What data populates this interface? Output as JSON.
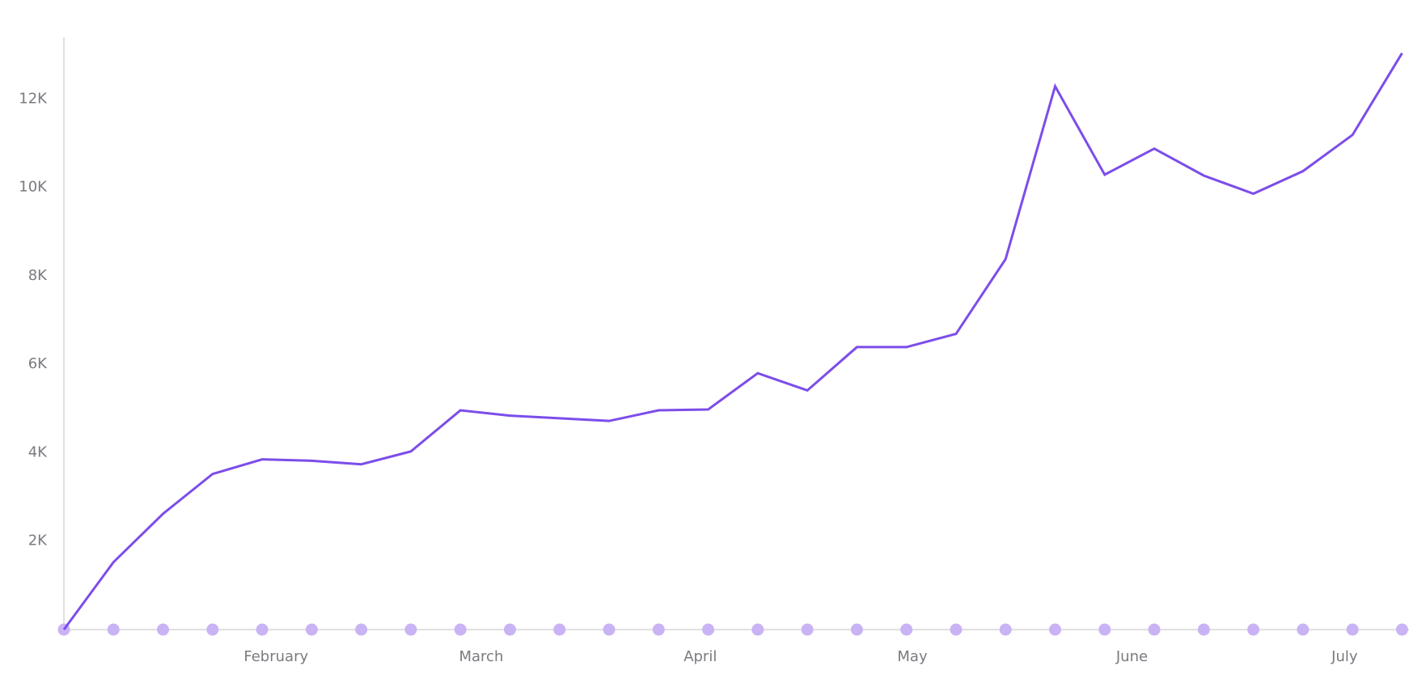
{
  "chart_data": {
    "type": "line",
    "series": [
      {
        "color": "#7c4dea",
        "values": [
          0,
          1525,
          2620,
          3520,
          3850,
          3820,
          3740,
          4030,
          4960,
          4840,
          4780,
          4720,
          4960,
          4980,
          5800,
          5410,
          6390,
          6390,
          6690,
          8380,
          12290,
          10290,
          10880,
          10270,
          9860,
          10370,
          11190,
          13040
        ]
      }
    ],
    "marker_color": "#c9b3f5",
    "ylim": [
      0,
      13400
    ],
    "yticks": [
      {
        "value": 2000,
        "label": "2K"
      },
      {
        "value": 4000,
        "label": "4K"
      },
      {
        "value": 6000,
        "label": "6K"
      },
      {
        "value": 8000,
        "label": "8K"
      },
      {
        "value": 10000,
        "label": "10K"
      },
      {
        "value": 12000,
        "label": "12K"
      }
    ],
    "xlim": [
      0,
      27.14
    ],
    "xticks": [
      {
        "value": 4.28,
        "label": "February"
      },
      {
        "value": 8.42,
        "label": "March"
      },
      {
        "value": 12.84,
        "label": "April"
      },
      {
        "value": 17.12,
        "label": "May"
      },
      {
        "value": 21.55,
        "label": "June"
      },
      {
        "value": 25.84,
        "label": "July"
      }
    ],
    "grid": false
  }
}
